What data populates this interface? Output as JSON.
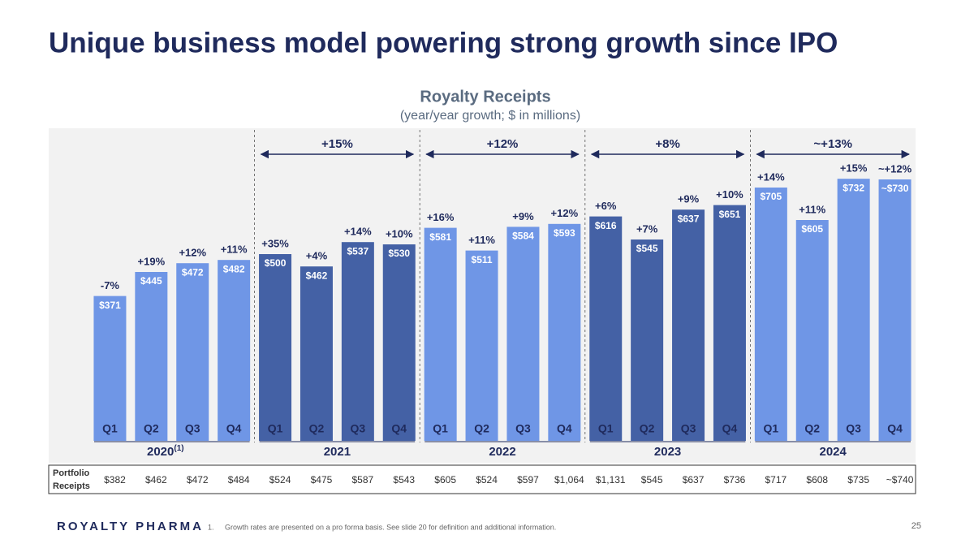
{
  "page": {
    "title": "Unique business model powering strong growth since IPO",
    "footnote_number": "1.",
    "footnote": "Growth rates are presented on a pro forma basis. See slide 20 for definition and additional information.",
    "page_number": "25",
    "logo": "ROYALTY PHARMA"
  },
  "chart_data": {
    "type": "bar",
    "title": "Royalty Receipts",
    "subtitle": "(year/year growth; $ in millions)",
    "categories": [
      "Q1",
      "Q2",
      "Q3",
      "Q4",
      "Q1",
      "Q2",
      "Q3",
      "Q4",
      "Q1",
      "Q2",
      "Q3",
      "Q4",
      "Q1",
      "Q2",
      "Q3",
      "Q4",
      "Q1",
      "Q2",
      "Q3",
      "Q4"
    ],
    "years": [
      "2020",
      "2021",
      "2022",
      "2023",
      "2024"
    ],
    "year_footnote_marker": "(1)",
    "values": [
      371,
      445,
      472,
      482,
      500,
      462,
      537,
      530,
      581,
      511,
      584,
      593,
      616,
      545,
      637,
      651,
      705,
      605,
      732,
      730
    ],
    "value_labels": [
      "$371",
      "$445",
      "$472",
      "$482",
      "$500",
      "$462",
      "$537",
      "$530",
      "$581",
      "$511",
      "$584",
      "$593",
      "$616",
      "$545",
      "$637",
      "$651",
      "$705",
      "$605",
      "$732",
      "~$730"
    ],
    "growth_labels": [
      "-7%",
      "+19%",
      "+12%",
      "+11%",
      "+35%",
      "+4%",
      "+14%",
      "+10%",
      "+16%",
      "+11%",
      "+9%",
      "+12%",
      "+6%",
      "+7%",
      "+9%",
      "+10%",
      "+14%",
      "+11%",
      "+15%",
      "~+12%"
    ],
    "year_colors": [
      "#6f96e6",
      "#4461a5",
      "#6f96e6",
      "#4461a5",
      "#6f96e6"
    ],
    "period_growth": [
      "+15%",
      "+12%",
      "+8%",
      "~+13%"
    ],
    "ylim": [
      -75,
      800
    ],
    "portfolio_receipts": {
      "label": "Portfolio Receipts",
      "values": [
        "$382",
        "$462",
        "$472",
        "$484",
        "$524",
        "$475",
        "$587",
        "$543",
        "$605",
        "$524",
        "$597",
        "$1,064",
        "$1,131",
        "$545",
        "$637",
        "$736",
        "$717",
        "$608",
        "$735",
        "~$740"
      ]
    }
  }
}
